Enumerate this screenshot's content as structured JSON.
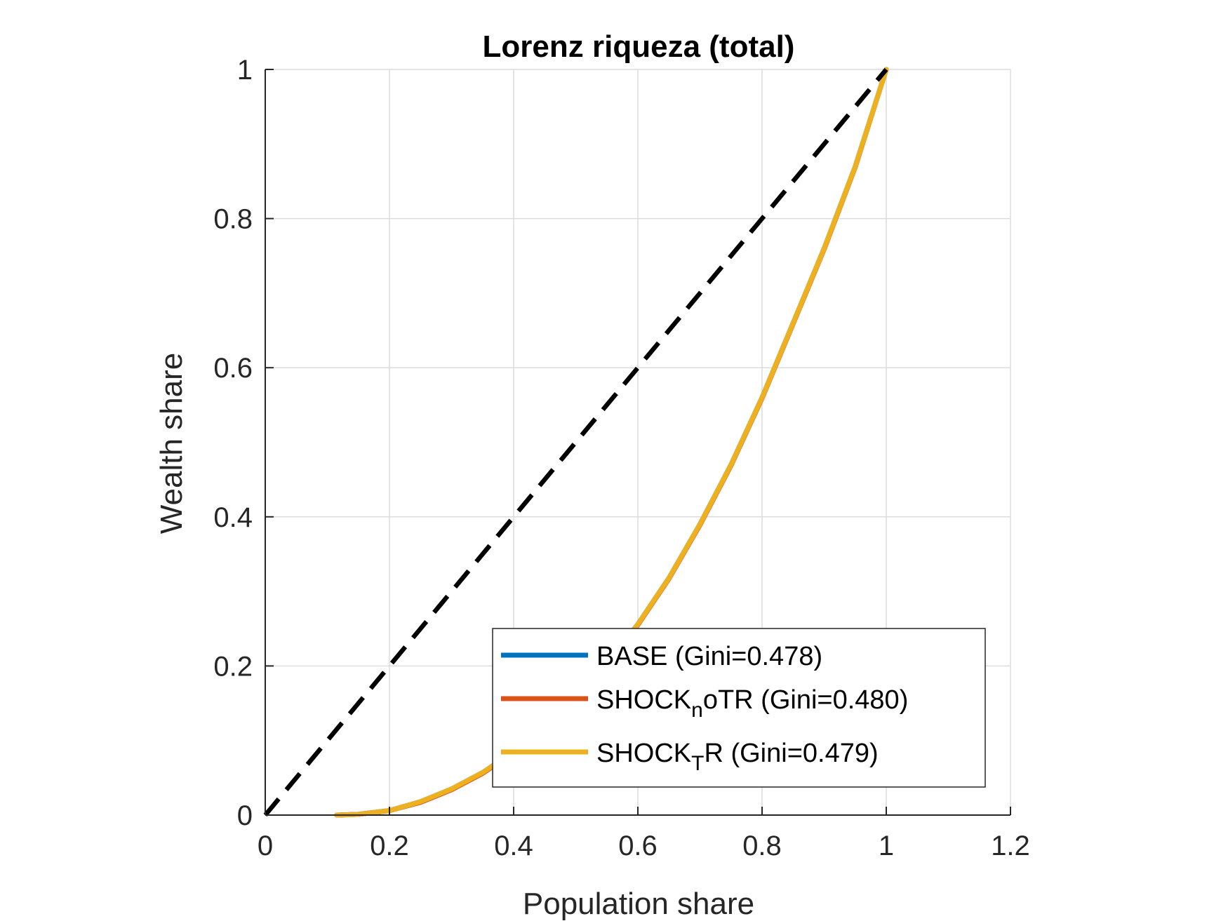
{
  "chart_data": {
    "type": "line",
    "title": "Lorenz riqueza (total)",
    "xlabel": "Population share",
    "ylabel": "Wealth share",
    "xlim": [
      0,
      1.2
    ],
    "ylim": [
      0,
      1
    ],
    "xticks": [
      "0",
      "0.2",
      "0.4",
      "0.6",
      "0.8",
      "1",
      "1.2"
    ],
    "yticks": [
      "0",
      "0.2",
      "0.4",
      "0.6",
      "0.8",
      "1"
    ],
    "grid": true,
    "legend_position": "bottom-right",
    "equality_line": {
      "x": [
        0,
        1
      ],
      "y": [
        0,
        1
      ],
      "color": "#000000",
      "style": "dashed"
    },
    "series": [
      {
        "name": "BASE  (Gini=0.478)",
        "label_main": "BASE  (Gini=0.478)",
        "label_sub": "",
        "label_tail": "",
        "color": "#0072BD",
        "x": [
          0.115,
          0.15,
          0.2,
          0.25,
          0.3,
          0.35,
          0.4,
          0.45,
          0.5,
          0.55,
          0.6,
          0.65,
          0.7,
          0.75,
          0.8,
          0.85,
          0.9,
          0.95,
          1.0
        ],
        "y": [
          0.0,
          0.001,
          0.006,
          0.018,
          0.035,
          0.057,
          0.085,
          0.118,
          0.158,
          0.203,
          0.256,
          0.318,
          0.39,
          0.47,
          0.56,
          0.66,
          0.76,
          0.87,
          1.0
        ]
      },
      {
        "name": "SHOCK_noTR  (Gini=0.480)",
        "label_main": "SHOCK",
        "label_sub": "n",
        "label_tail": "oTR  (Gini=0.480)",
        "color": "#D95319",
        "x": [
          0.115,
          0.15,
          0.2,
          0.25,
          0.3,
          0.35,
          0.4,
          0.45,
          0.5,
          0.55,
          0.6,
          0.65,
          0.7,
          0.75,
          0.8,
          0.85,
          0.9,
          0.95,
          1.0
        ],
        "y": [
          0.0,
          0.001,
          0.006,
          0.017,
          0.034,
          0.056,
          0.084,
          0.117,
          0.157,
          0.202,
          0.255,
          0.317,
          0.389,
          0.469,
          0.559,
          0.659,
          0.759,
          0.869,
          1.0
        ]
      },
      {
        "name": "SHOCK_TR  (Gini=0.479)",
        "label_main": "SHOCK",
        "label_sub": "T",
        "label_tail": "R  (Gini=0.479)",
        "color": "#EDB120",
        "x": [
          0.115,
          0.15,
          0.2,
          0.25,
          0.3,
          0.35,
          0.4,
          0.45,
          0.5,
          0.55,
          0.6,
          0.65,
          0.7,
          0.75,
          0.8,
          0.85,
          0.9,
          0.95,
          1.0
        ],
        "y": [
          0.0,
          0.001,
          0.006,
          0.018,
          0.035,
          0.057,
          0.085,
          0.118,
          0.158,
          0.203,
          0.256,
          0.318,
          0.39,
          0.47,
          0.56,
          0.66,
          0.76,
          0.87,
          1.0
        ]
      }
    ]
  }
}
